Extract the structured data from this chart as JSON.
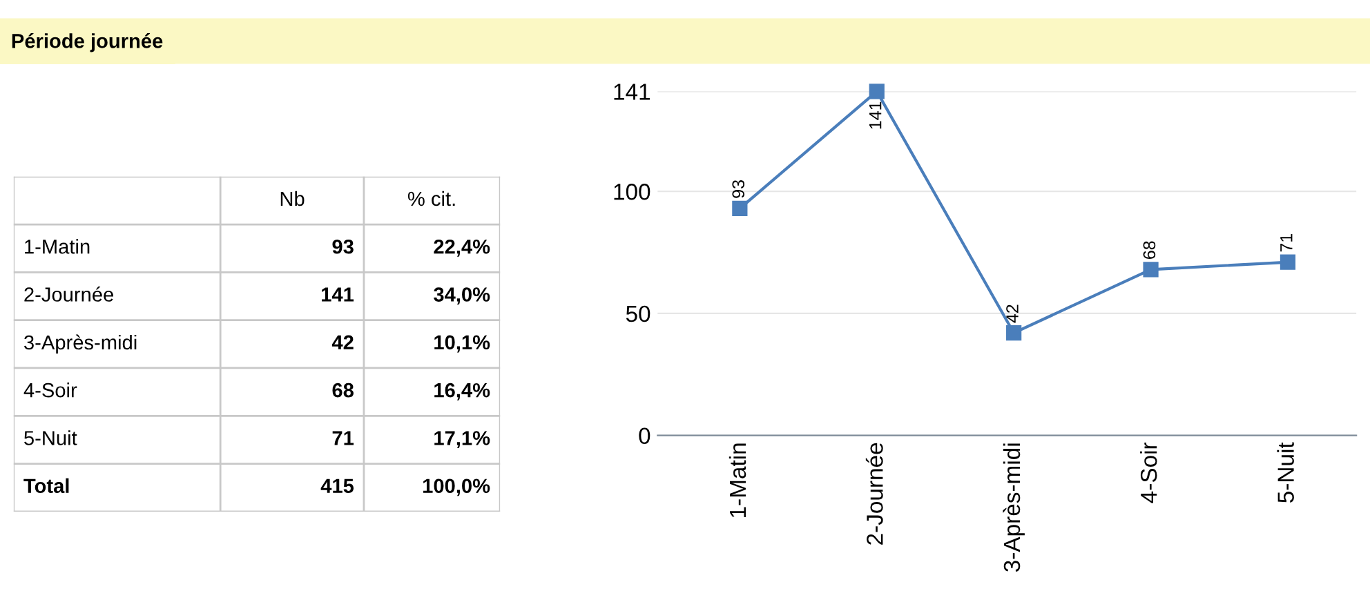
{
  "chart_data": [
    {
      "type": "other",
      "title": "Période journée",
      "annotations": [
        "Nb",
        "% cit.",
        "1-Matin",
        "93",
        "22,4%",
        "2-Journée",
        "141",
        "34,0%",
        "3-Après-midi",
        "42",
        "10,1%",
        "4-Soir",
        "68",
        "16,4%",
        "5-Nuit",
        "71",
        "17,1%",
        "Total",
        "415",
        "100,0%"
      ]
    },
    {
      "type": "line",
      "categories": [
        "1-Matin",
        "2-Journée",
        "3-Après-midi",
        "4-Soir",
        "5-Nuit"
      ],
      "series": [
        {
          "color": "#4a7ebb",
          "values": [
            93,
            141,
            42,
            68,
            71
          ]
        }
      ],
      "ylim": [
        0,
        141
      ],
      "yticks": [
        0,
        50,
        100,
        141
      ],
      "grid": "y",
      "marker": "square",
      "line_style": "solid",
      "data_labels": true,
      "legend": false
    }
  ]
}
